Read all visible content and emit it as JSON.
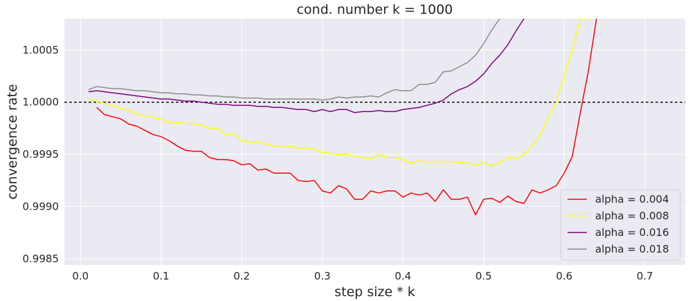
{
  "chart_data": {
    "type": "line",
    "title": "cond. number k = 1000",
    "xlabel": "step size * k",
    "ylabel": "convergence rate",
    "xlim": [
      -0.02,
      0.75
    ],
    "ylim": [
      0.99844,
      1.0008
    ],
    "x_ticks": [
      0.0,
      0.1,
      0.2,
      0.3,
      0.4,
      0.5,
      0.6,
      0.7
    ],
    "x_tick_labels": [
      "0.0",
      "0.1",
      "0.2",
      "0.3",
      "0.4",
      "0.5",
      "0.6",
      "0.7"
    ],
    "y_ticks": [
      0.9985,
      0.999,
      0.9995,
      1.0,
      1.0005
    ],
    "y_tick_labels": [
      "0.9985",
      "0.9990",
      "0.9995",
      "1.0000",
      "1.0005"
    ],
    "grid": true,
    "legend_position": "bottom-right",
    "reference_line": {
      "y": 1.0,
      "style": "dashed",
      "color": "#000000"
    },
    "background": "#eaeaf2",
    "series": [
      {
        "name": "alpha = 0.004",
        "color": "#ff0000",
        "x": [
          0.02,
          0.03,
          0.04,
          0.05,
          0.06,
          0.07,
          0.08,
          0.09,
          0.1,
          0.11,
          0.12,
          0.13,
          0.14,
          0.15,
          0.16,
          0.17,
          0.18,
          0.19,
          0.2,
          0.21,
          0.22,
          0.23,
          0.24,
          0.25,
          0.26,
          0.27,
          0.28,
          0.29,
          0.3,
          0.31,
          0.32,
          0.33,
          0.34,
          0.35,
          0.36,
          0.37,
          0.38,
          0.39,
          0.4,
          0.41,
          0.42,
          0.43,
          0.44,
          0.45,
          0.46,
          0.47,
          0.48,
          0.49,
          0.5,
          0.51,
          0.52,
          0.53,
          0.54,
          0.55,
          0.56,
          0.57,
          0.58,
          0.59,
          0.6,
          0.61,
          0.62,
          0.63,
          0.64
        ],
        "y": [
          0.99995,
          0.99988,
          0.99986,
          0.99984,
          0.99979,
          0.99977,
          0.99973,
          0.99969,
          0.99967,
          0.99963,
          0.99958,
          0.99954,
          0.99953,
          0.99953,
          0.99947,
          0.99945,
          0.99945,
          0.99944,
          0.9994,
          0.99941,
          0.99935,
          0.99936,
          0.99932,
          0.99932,
          0.99932,
          0.99925,
          0.99924,
          0.99925,
          0.99915,
          0.99913,
          0.9992,
          0.99917,
          0.99907,
          0.99907,
          0.99915,
          0.99913,
          0.99915,
          0.99915,
          0.99909,
          0.99913,
          0.99911,
          0.99913,
          0.99905,
          0.99916,
          0.99907,
          0.99907,
          0.99909,
          0.99892,
          0.99907,
          0.99908,
          0.99904,
          0.9991,
          0.99905,
          0.99903,
          0.99916,
          0.99913,
          0.99916,
          0.9992,
          0.99932,
          0.99948,
          0.9999,
          1.0003,
          1.0008
        ]
      },
      {
        "name": "alpha = 0.008",
        "color": "#ffff00",
        "x": [
          0.01,
          0.02,
          0.03,
          0.04,
          0.05,
          0.06,
          0.07,
          0.08,
          0.09,
          0.1,
          0.11,
          0.12,
          0.13,
          0.14,
          0.15,
          0.16,
          0.17,
          0.18,
          0.19,
          0.2,
          0.21,
          0.22,
          0.23,
          0.24,
          0.25,
          0.26,
          0.27,
          0.28,
          0.29,
          0.3,
          0.31,
          0.32,
          0.33,
          0.34,
          0.35,
          0.36,
          0.37,
          0.38,
          0.39,
          0.4,
          0.41,
          0.42,
          0.43,
          0.44,
          0.45,
          0.46,
          0.47,
          0.48,
          0.49,
          0.5,
          0.51,
          0.52,
          0.53,
          0.54,
          0.55,
          0.56,
          0.57,
          0.58,
          0.59,
          0.6,
          0.61,
          0.62,
          0.63
        ],
        "y": [
          1.00003,
          1.00001,
          0.99999,
          0.99997,
          0.99994,
          0.99992,
          0.99989,
          0.99987,
          0.99985,
          0.99984,
          0.99981,
          0.99981,
          0.9998,
          0.99979,
          0.99978,
          0.99975,
          0.99975,
          0.99969,
          0.9997,
          0.99963,
          0.99962,
          0.99962,
          0.9996,
          0.99958,
          0.99958,
          0.99957,
          0.99956,
          0.99956,
          0.99955,
          0.99952,
          0.99951,
          0.9995,
          0.9995,
          0.99948,
          0.99947,
          0.99946,
          0.9995,
          0.99947,
          0.99947,
          0.99945,
          0.99942,
          0.99944,
          0.99943,
          0.99943,
          0.99943,
          0.99943,
          0.99942,
          0.99942,
          0.99939,
          0.99942,
          0.99939,
          0.99942,
          0.99947,
          0.99946,
          0.9995,
          0.99958,
          0.99968,
          0.99985,
          1.0,
          1.00025,
          1.0005,
          1.0008,
          1.0008
        ]
      },
      {
        "name": "alpha = 0.016",
        "color": "#800080",
        "x": [
          0.01,
          0.02,
          0.03,
          0.04,
          0.05,
          0.06,
          0.07,
          0.08,
          0.09,
          0.1,
          0.11,
          0.12,
          0.13,
          0.14,
          0.15,
          0.16,
          0.17,
          0.18,
          0.19,
          0.2,
          0.21,
          0.22,
          0.23,
          0.24,
          0.25,
          0.26,
          0.27,
          0.28,
          0.29,
          0.3,
          0.31,
          0.32,
          0.33,
          0.34,
          0.35,
          0.36,
          0.37,
          0.38,
          0.39,
          0.4,
          0.41,
          0.42,
          0.43,
          0.44,
          0.45,
          0.46,
          0.47,
          0.48,
          0.49,
          0.5,
          0.51,
          0.52,
          0.53,
          0.54,
          0.55
        ],
        "y": [
          1.0001,
          1.00011,
          1.0001,
          1.00009,
          1.00008,
          1.00007,
          1.00006,
          1.00005,
          1.00004,
          1.00003,
          1.00003,
          1.00002,
          1.00001,
          1.00001,
          1.0,
          0.99999,
          0.99998,
          0.99998,
          0.99997,
          0.99997,
          0.99997,
          0.99996,
          0.99996,
          0.99995,
          0.99995,
          0.99994,
          0.99993,
          0.99993,
          0.99991,
          0.99993,
          0.99991,
          0.99993,
          0.99993,
          0.9999,
          0.99991,
          0.99991,
          0.99992,
          0.99991,
          0.99991,
          0.99993,
          0.99994,
          0.99995,
          0.99997,
          0.99999,
          1.00002,
          1.00008,
          1.00012,
          1.00015,
          1.0002,
          1.00027,
          1.00037,
          1.00045,
          1.00055,
          1.00068,
          1.0008
        ]
      },
      {
        "name": "alpha = 0.018",
        "color": "#8c8c8c",
        "x": [
          0.01,
          0.02,
          0.03,
          0.04,
          0.05,
          0.06,
          0.07,
          0.08,
          0.09,
          0.1,
          0.11,
          0.12,
          0.13,
          0.14,
          0.15,
          0.16,
          0.17,
          0.18,
          0.19,
          0.2,
          0.21,
          0.22,
          0.23,
          0.24,
          0.25,
          0.26,
          0.27,
          0.28,
          0.29,
          0.3,
          0.31,
          0.32,
          0.33,
          0.34,
          0.35,
          0.36,
          0.37,
          0.38,
          0.39,
          0.4,
          0.41,
          0.42,
          0.43,
          0.44,
          0.45,
          0.46,
          0.47,
          0.48,
          0.49,
          0.5,
          0.51,
          0.52
        ],
        "y": [
          1.00012,
          1.00015,
          1.00014,
          1.00013,
          1.00013,
          1.00012,
          1.00011,
          1.00011,
          1.0001,
          1.00009,
          1.00009,
          1.00008,
          1.00008,
          1.00007,
          1.00007,
          1.00006,
          1.00006,
          1.00005,
          1.00005,
          1.00004,
          1.00004,
          1.00004,
          1.00003,
          1.00003,
          1.00003,
          1.00003,
          1.00003,
          1.00003,
          1.00003,
          1.00002,
          1.00003,
          1.00005,
          1.00004,
          1.00005,
          1.00005,
          1.00006,
          1.00005,
          1.00009,
          1.00012,
          1.00011,
          1.00011,
          1.00017,
          1.00017,
          1.00019,
          1.00029,
          1.0003,
          1.00034,
          1.00038,
          1.00045,
          1.00056,
          1.00069,
          1.0008
        ]
      }
    ]
  }
}
